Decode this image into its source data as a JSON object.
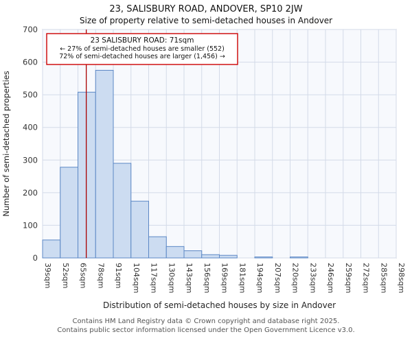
{
  "header": {
    "title": "23, SALISBURY ROAD, ANDOVER, SP10 2JW",
    "subtitle": "Size of property relative to semi-detached houses in Andover"
  },
  "footer": {
    "line1": "Contains HM Land Registry data © Crown copyright and database right 2025.",
    "line2": "Contains public sector information licensed under the Open Government Licence v3.0."
  },
  "chart_data": {
    "type": "bar",
    "title": "23, SALISBURY ROAD, ANDOVER, SP10 2JW",
    "subtitle": "Size of property relative to semi-detached houses in Andover",
    "xlabel": "Distribution of semi-detached houses by size in Andover",
    "ylabel": "Number of semi-detached properties",
    "ylim": [
      0,
      700
    ],
    "ytick_step": 100,
    "x_min": 39,
    "x_max": 298,
    "xtick_labels": [
      "39sqm",
      "52sqm",
      "65sqm",
      "78sqm",
      "91sqm",
      "104sqm",
      "117sqm",
      "130sqm",
      "143sqm",
      "156sqm",
      "169sqm",
      "181sqm",
      "194sqm",
      "207sqm",
      "220sqm",
      "233sqm",
      "246sqm",
      "259sqm",
      "272sqm",
      "285sqm",
      "298sqm"
    ],
    "values": [
      55,
      278,
      508,
      575,
      290,
      174,
      65,
      35,
      22,
      10,
      8,
      0,
      3,
      0,
      3,
      0,
      0,
      0,
      0,
      0
    ],
    "marker": {
      "value": 71
    },
    "annotation": {
      "line1": "23 SALISBURY ROAD: 71sqm",
      "line2": "← 27% of semi-detached houses are smaller (552)",
      "line3": "72% of semi-detached houses are larger (1,456) →"
    },
    "grid": true,
    "legend": "none",
    "colors": {
      "bar_fill": "#ccdcf1",
      "bar_stroke": "#5b87c5",
      "marker": "#aa0000",
      "annotation_border": "#cc0000",
      "grid": "#d3dae8",
      "plot_bg": "#f7f9fd",
      "spine": "#9aa3b5",
      "text": "#222222",
      "tick_text": "#333333"
    }
  }
}
